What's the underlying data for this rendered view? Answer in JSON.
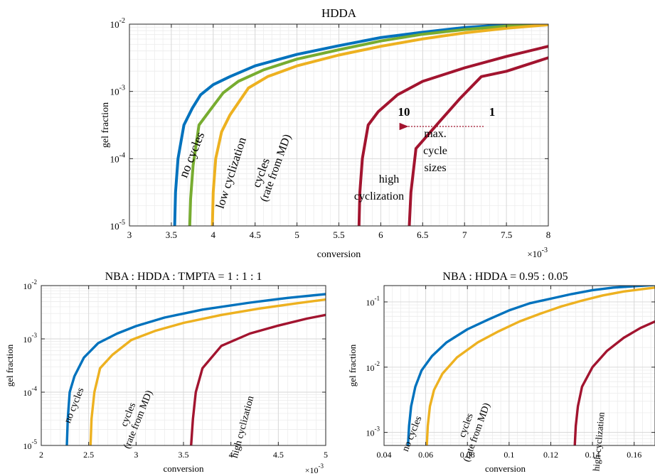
{
  "chart_data": [
    {
      "type": "line",
      "title": "HDDA",
      "xlabel": "conversion",
      "ylabel": "gel fraction",
      "x_scale_note": "×10",
      "x_scale_exp": "-3",
      "xlim": [
        3,
        8
      ],
      "ylim_log10": [
        -5,
        -2
      ],
      "xticks": [
        "3",
        "3.5",
        "4",
        "4.5",
        "5",
        "5.5",
        "6",
        "6.5",
        "7",
        "7.5",
        "8"
      ],
      "xtick_values": [
        3,
        3.5,
        4,
        4.5,
        5,
        5.5,
        6,
        6.5,
        7,
        7.5,
        8
      ],
      "yticks": [
        {
          "base": "10",
          "exp": "-5",
          "v": -5
        },
        {
          "base": "10",
          "exp": "-4",
          "v": -4
        },
        {
          "base": "10",
          "exp": "-3",
          "v": -3
        },
        {
          "base": "10",
          "exp": "-2",
          "v": -2
        }
      ],
      "series": [
        {
          "color": "#0072BD",
          "values": [
            [
              3.54,
              -5
            ],
            [
              3.55,
              -4.5
            ],
            [
              3.58,
              -4.0
            ],
            [
              3.65,
              -3.5
            ],
            [
              3.75,
              -3.25
            ],
            [
              3.85,
              -3.05
            ],
            [
              4.0,
              -2.9
            ],
            [
              4.2,
              -2.78
            ],
            [
              4.5,
              -2.62
            ],
            [
              5.0,
              -2.45
            ],
            [
              5.5,
              -2.32
            ],
            [
              6.0,
              -2.2
            ],
            [
              6.5,
              -2.12
            ],
            [
              7.0,
              -2.05
            ],
            [
              7.6,
              -2.0
            ]
          ]
        },
        {
          "color": "#77AC30",
          "values": [
            [
              3.72,
              -5
            ],
            [
              3.73,
              -4.6
            ],
            [
              3.76,
              -4.1
            ],
            [
              3.83,
              -3.5
            ],
            [
              3.95,
              -3.3
            ],
            [
              4.12,
              -3.02
            ],
            [
              4.3,
              -2.85
            ],
            [
              4.6,
              -2.68
            ],
            [
              5.0,
              -2.52
            ],
            [
              5.5,
              -2.38
            ],
            [
              6.0,
              -2.25
            ],
            [
              6.5,
              -2.15
            ],
            [
              7.0,
              -2.08
            ],
            [
              7.5,
              -2.03
            ],
            [
              8.0,
              -1.99
            ]
          ]
        },
        {
          "color": "#EDB120",
          "values": [
            [
              3.99,
              -5
            ],
            [
              4.0,
              -4.5
            ],
            [
              4.03,
              -4.0
            ],
            [
              4.1,
              -3.6
            ],
            [
              4.2,
              -3.35
            ],
            [
              4.42,
              -2.95
            ],
            [
              4.65,
              -2.78
            ],
            [
              5.0,
              -2.62
            ],
            [
              5.5,
              -2.46
            ],
            [
              6.0,
              -2.33
            ],
            [
              6.5,
              -2.22
            ],
            [
              7.0,
              -2.13
            ],
            [
              7.5,
              -2.06
            ],
            [
              8.0,
              -2.01
            ]
          ]
        },
        {
          "color": "#A2142F",
          "values": [
            [
              5.74,
              -5
            ],
            [
              5.75,
              -4.5
            ],
            [
              5.78,
              -4.0
            ],
            [
              5.85,
              -3.5
            ],
            [
              5.97,
              -3.3
            ],
            [
              6.2,
              -3.05
            ],
            [
              6.5,
              -2.85
            ],
            [
              7.0,
              -2.65
            ],
            [
              7.5,
              -2.48
            ],
            [
              8.0,
              -2.33
            ]
          ]
        },
        {
          "color": "#A2142F",
          "values": [
            [
              6.34,
              -5
            ],
            [
              6.36,
              -4.5
            ],
            [
              6.42,
              -3.85
            ],
            [
              6.7,
              -3.45
            ],
            [
              6.95,
              -3.1
            ],
            [
              7.2,
              -2.78
            ],
            [
              7.5,
              -2.7
            ],
            [
              8.0,
              -2.5
            ]
          ]
        }
      ],
      "annotations": [
        {
          "text": "no cycles",
          "color": "#0072BD"
        },
        {
          "text": "low cyclization",
          "color": "#77AC30"
        },
        {
          "text": "cycles",
          "color": "#EDB120"
        },
        {
          "text": "(rate from MD)",
          "color": "#EDB120"
        },
        {
          "text": "10",
          "color": "#A2142F"
        },
        {
          "text": "1",
          "color": "#A2142F"
        },
        {
          "text": "max.",
          "color": "#A2142F"
        },
        {
          "text": "cycle",
          "color": "#A2142F"
        },
        {
          "text": "sizes",
          "color": "#A2142F"
        },
        {
          "text": "high",
          "color": "#A2142F"
        },
        {
          "text": "cyclization",
          "color": "#A2142F"
        }
      ]
    },
    {
      "type": "line",
      "title": "NBA : HDDA : TMPTA = 1 : 1 : 1",
      "xlabel": "conversion",
      "ylabel": "gel fraction",
      "x_scale_note": "×10",
      "x_scale_exp": "-3",
      "xlim": [
        2,
        5
      ],
      "ylim_log10": [
        -5,
        -2
      ],
      "xticks": [
        "2",
        "2.5",
        "3",
        "3.5",
        "4",
        "4.5",
        "5"
      ],
      "xtick_values": [
        2,
        2.5,
        3,
        3.5,
        4,
        4.5,
        5
      ],
      "yticks": [
        {
          "base": "10",
          "exp": "-5",
          "v": -5
        },
        {
          "base": "10",
          "exp": "-4",
          "v": -4
        },
        {
          "base": "10",
          "exp": "-3",
          "v": -3
        },
        {
          "base": "10",
          "exp": "-2",
          "v": -2
        }
      ],
      "series": [
        {
          "color": "#0072BD",
          "values": [
            [
              2.27,
              -5
            ],
            [
              2.28,
              -4.5
            ],
            [
              2.3,
              -4.0
            ],
            [
              2.35,
              -3.7
            ],
            [
              2.45,
              -3.35
            ],
            [
              2.6,
              -3.08
            ],
            [
              2.8,
              -2.9
            ],
            [
              3.0,
              -2.76
            ],
            [
              3.3,
              -2.6
            ],
            [
              3.7,
              -2.45
            ],
            [
              4.2,
              -2.32
            ],
            [
              4.6,
              -2.23
            ],
            [
              5.0,
              -2.16
            ]
          ]
        },
        {
          "color": "#EDB120",
          "values": [
            [
              2.52,
              -5
            ],
            [
              2.53,
              -4.5
            ],
            [
              2.56,
              -4.0
            ],
            [
              2.62,
              -3.55
            ],
            [
              2.75,
              -3.3
            ],
            [
              2.95,
              -3.02
            ],
            [
              3.2,
              -2.85
            ],
            [
              3.5,
              -2.7
            ],
            [
              3.9,
              -2.55
            ],
            [
              4.3,
              -2.43
            ],
            [
              4.7,
              -2.33
            ],
            [
              5.0,
              -2.26
            ]
          ]
        },
        {
          "color": "#A2142F",
          "values": [
            [
              3.58,
              -5
            ],
            [
              3.6,
              -4.5
            ],
            [
              3.63,
              -4.0
            ],
            [
              3.7,
              -3.55
            ],
            [
              3.9,
              -3.13
            ],
            [
              4.2,
              -2.9
            ],
            [
              4.5,
              -2.75
            ],
            [
              4.8,
              -2.62
            ],
            [
              5.0,
              -2.55
            ]
          ]
        }
      ],
      "annotations": [
        {
          "text": "no cycles",
          "color": "#0072BD"
        },
        {
          "text": "cycles",
          "color": "#EDB120"
        },
        {
          "text": "(rate from MD)",
          "color": "#EDB120"
        },
        {
          "text": "high cyclization",
          "color": "#A2142F"
        }
      ]
    },
    {
      "type": "line",
      "title": "NBA : HDDA = 0.95 : 0.05",
      "xlabel": "conversion",
      "ylabel": "gel fraction",
      "xlim": [
        0.04,
        0.17
      ],
      "ylim_log10": [
        -3.2,
        -0.75
      ],
      "xticks": [
        "0.04",
        "0.06",
        "0.08",
        "0.1",
        "0.12",
        "0.14",
        "0.16"
      ],
      "xtick_values": [
        0.04,
        0.06,
        0.08,
        0.1,
        0.12,
        0.14,
        0.16
      ],
      "yticks": [
        {
          "base": "10",
          "exp": "-3",
          "v": -3
        },
        {
          "base": "10",
          "exp": "-2",
          "v": -2
        },
        {
          "base": "10",
          "exp": "-1",
          "v": -1
        }
      ],
      "series": [
        {
          "color": "#0072BD",
          "values": [
            [
              0.0515,
              -3.2
            ],
            [
              0.052,
              -2.9
            ],
            [
              0.053,
              -2.6
            ],
            [
              0.055,
              -2.3
            ],
            [
              0.058,
              -2.05
            ],
            [
              0.063,
              -1.83
            ],
            [
              0.07,
              -1.62
            ],
            [
              0.08,
              -1.42
            ],
            [
              0.09,
              -1.27
            ],
            [
              0.1,
              -1.13
            ],
            [
              0.11,
              -1.02
            ],
            [
              0.12,
              -0.95
            ],
            [
              0.13,
              -0.88
            ],
            [
              0.14,
              -0.82
            ],
            [
              0.15,
              -0.78
            ],
            [
              0.16,
              -0.76
            ],
            [
              0.17,
              -0.74
            ]
          ]
        },
        {
          "color": "#EDB120",
          "values": [
            [
              0.0605,
              -3.2
            ],
            [
              0.061,
              -2.9
            ],
            [
              0.062,
              -2.6
            ],
            [
              0.064,
              -2.35
            ],
            [
              0.068,
              -2.1
            ],
            [
              0.075,
              -1.85
            ],
            [
              0.085,
              -1.62
            ],
            [
              0.095,
              -1.45
            ],
            [
              0.105,
              -1.3
            ],
            [
              0.115,
              -1.18
            ],
            [
              0.125,
              -1.07
            ],
            [
              0.135,
              -0.98
            ],
            [
              0.145,
              -0.9
            ],
            [
              0.155,
              -0.84
            ],
            [
              0.165,
              -0.8
            ],
            [
              0.17,
              -0.78
            ]
          ]
        },
        {
          "color": "#A2142F",
          "values": [
            [
              0.1315,
              -3.2
            ],
            [
              0.132,
              -2.9
            ],
            [
              0.133,
              -2.6
            ],
            [
              0.135,
              -2.3
            ],
            [
              0.14,
              -2.0
            ],
            [
              0.147,
              -1.75
            ],
            [
              0.155,
              -1.55
            ],
            [
              0.163,
              -1.4
            ],
            [
              0.17,
              -1.3
            ]
          ]
        }
      ],
      "annotations": [
        {
          "text": "no cycles",
          "color": "#0072BD"
        },
        {
          "text": "cycles",
          "color": "#EDB120"
        },
        {
          "text": "(rate from MD)",
          "color": "#EDB120"
        },
        {
          "text": "high cyclization",
          "color": "#A2142F"
        }
      ]
    }
  ]
}
